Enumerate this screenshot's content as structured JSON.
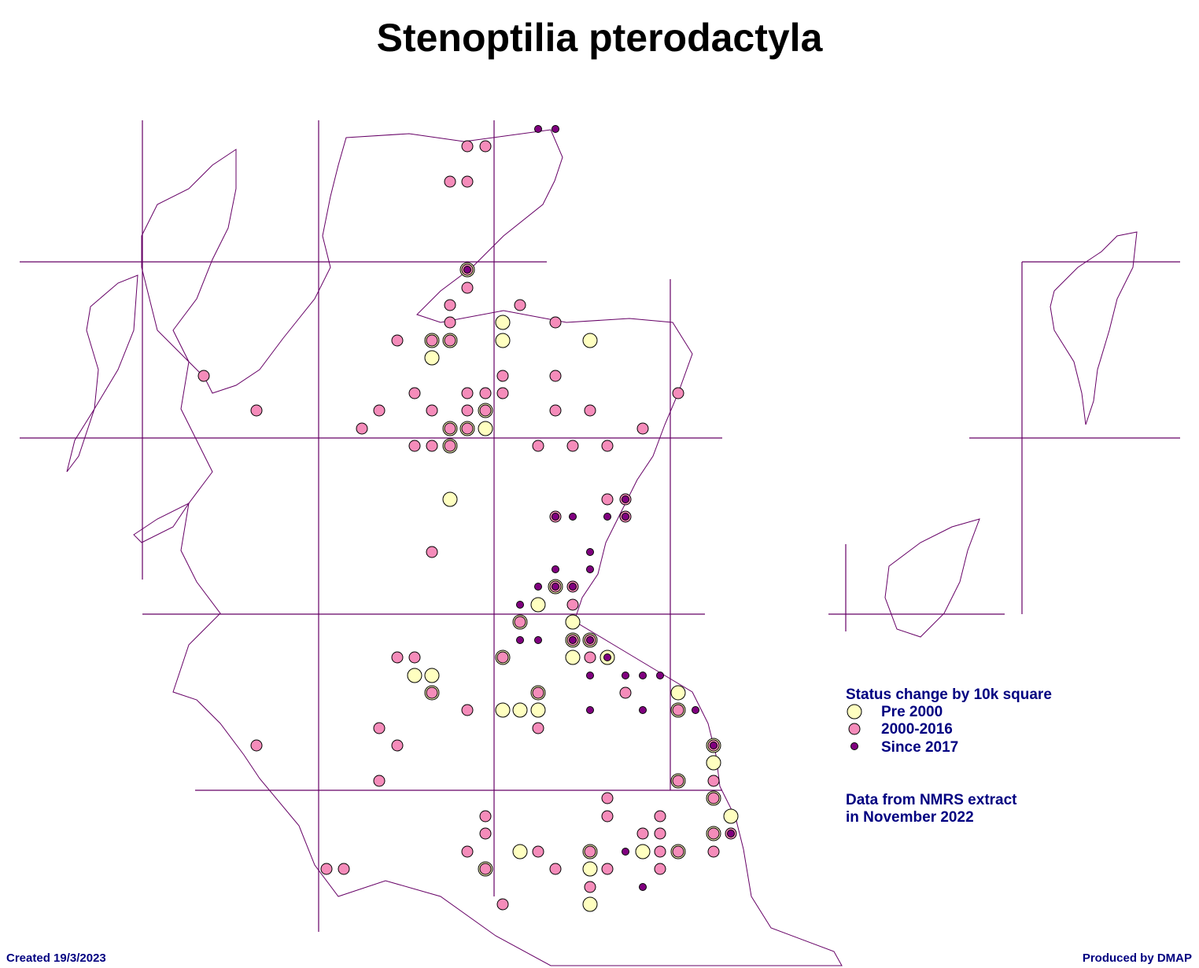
{
  "title": "Stenoptilia pterodactyla",
  "legend": {
    "title": "Status change by 10k square",
    "items": [
      "Pre 2000",
      "2000-2016",
      "Since 2017"
    ]
  },
  "note": [
    "Data from NMRS extract",
    "in November 2022"
  ],
  "footer": {
    "created": "Created 19/3/2023",
    "produced": "Produced by DMAP"
  }
}
